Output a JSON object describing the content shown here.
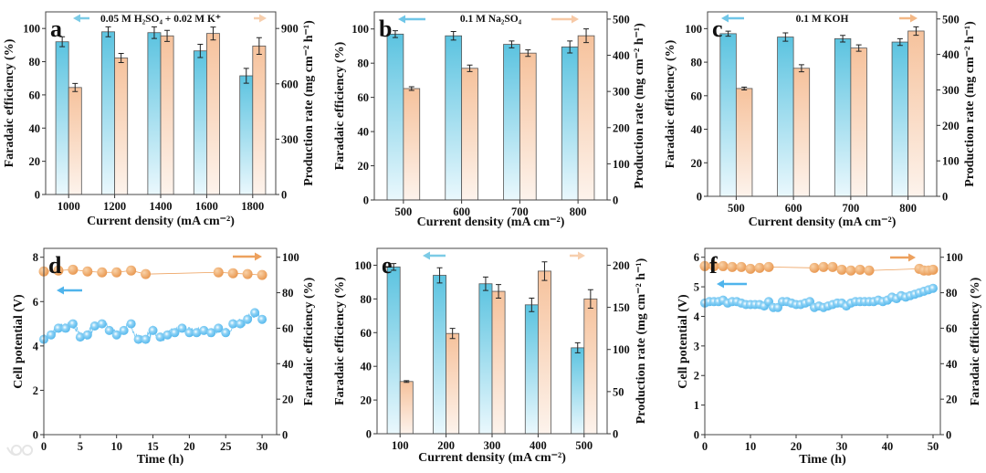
{
  "watermark": "大数跨境",
  "colors": {
    "fe_bar": "#5bc3e0",
    "pr_bar": "#f6c29c",
    "potential": "#4fb4ec",
    "fe_marker": "#eda15e",
    "axis": "#333333"
  },
  "chart_data": [
    {
      "panel": "a",
      "letter": "a",
      "type": "bar",
      "annotation": "0.05 M H₂SO₄ + 0.02 M K⁺",
      "categories": [
        "1000",
        "1200",
        "1400",
        "1600",
        "1800"
      ],
      "xlabel": "Current density (mA cm⁻²)",
      "ylabel": "Faradaic efficiency (%)",
      "y2label": "Production rate (mg cm⁻² h⁻¹)",
      "ylim": [
        0,
        110
      ],
      "yticks": [
        0,
        20,
        40,
        60,
        80,
        100
      ],
      "y2lim": [
        0,
        990
      ],
      "y2ticks": [
        0,
        300,
        600,
        900
      ],
      "series": [
        {
          "name": "Faradaic efficiency",
          "axis": "left",
          "values": [
            92,
            98,
            97.5,
            86.5,
            71.5
          ],
          "errors": [
            3,
            3,
            3.5,
            4,
            4.5
          ]
        },
        {
          "name": "Production rate",
          "axis": "right",
          "values": [
            580,
            740,
            860,
            873,
            805
          ],
          "errors": [
            22,
            25,
            30,
            35,
            45
          ]
        }
      ]
    },
    {
      "panel": "b",
      "letter": "b",
      "type": "bar",
      "annotation": "0.1 M Na₂SO₄",
      "categories": [
        "500",
        "600",
        "700",
        "800"
      ],
      "xlabel": "Current density (mA cm⁻²)",
      "ylabel": "Faradaic efficiency (%)",
      "y2label": "Production rate (mg cm⁻² h⁻¹)",
      "ylim": [
        0,
        110
      ],
      "yticks": [
        0,
        20,
        40,
        60,
        80,
        100
      ],
      "y2lim": [
        0,
        520
      ],
      "y2ticks": [
        0,
        100,
        200,
        300,
        400,
        500
      ],
      "series": [
        {
          "name": "Faradaic efficiency",
          "axis": "left",
          "values": [
            97,
            96,
            91,
            89.5
          ],
          "errors": [
            2,
            2.5,
            2,
            3.5
          ]
        },
        {
          "name": "Production rate",
          "axis": "right",
          "values": [
            308,
            364,
            406,
            454
          ],
          "errors": [
            5,
            9,
            9,
            19
          ]
        }
      ]
    },
    {
      "panel": "c",
      "letter": "c",
      "type": "bar",
      "annotation": "0.1 M KOH",
      "categories": [
        "500",
        "600",
        "700",
        "800"
      ],
      "xlabel": "Current density (mA cm⁻²)",
      "ylabel": "Faradaic efficiency (%)",
      "y2label": "Production rate (mg cm⁻² h⁻¹)",
      "ylim": [
        0,
        110
      ],
      "yticks": [
        0,
        20,
        40,
        60,
        80,
        100
      ],
      "y2lim": [
        0,
        520
      ],
      "y2ticks": [
        0,
        100,
        200,
        300,
        400,
        500
      ],
      "series": [
        {
          "name": "Faradaic efficiency",
          "axis": "left",
          "values": [
            97,
            95,
            94,
            92
          ],
          "errors": [
            1.5,
            2.5,
            2,
            2
          ]
        },
        {
          "name": "Production rate",
          "axis": "right",
          "values": [
            304,
            361,
            418,
            466
          ],
          "errors": [
            4,
            10,
            9,
            12
          ]
        }
      ]
    },
    {
      "panel": "d",
      "letter": "d",
      "type": "line",
      "xlabel": "Time (h)",
      "ylabel": "Cell potential (V)",
      "y2label": "Faradaic efficiency (%)",
      "xlim": [
        0,
        32
      ],
      "xticks": [
        0,
        5,
        10,
        15,
        20,
        25,
        30
      ],
      "ylim": [
        0,
        8.4
      ],
      "yticks": [
        0,
        2,
        4,
        6,
        8
      ],
      "y2lim": [
        0,
        105
      ],
      "y2ticks": [
        0,
        20,
        40,
        60,
        80,
        100
      ],
      "series": [
        {
          "name": "Cell potential",
          "axis": "left",
          "x": [
            0,
            1,
            2,
            3,
            4,
            5,
            6,
            7,
            8,
            9,
            10,
            11,
            12,
            13,
            14,
            15,
            16,
            17,
            18,
            19,
            20,
            21,
            22,
            23,
            24,
            25,
            26,
            27,
            28,
            29,
            30
          ],
          "y": [
            4.3,
            4.5,
            4.8,
            4.8,
            5.0,
            4.4,
            4.5,
            4.9,
            5.0,
            4.7,
            4.5,
            4.7,
            5.0,
            4.3,
            4.3,
            4.7,
            4.4,
            4.5,
            4.6,
            4.8,
            4.6,
            4.6,
            4.7,
            4.6,
            4.8,
            4.6,
            5.0,
            5.0,
            5.2,
            5.5,
            5.2
          ]
        },
        {
          "name": "Faradaic efficiency",
          "axis": "right",
          "x": [
            0,
            2,
            4,
            6,
            8,
            10,
            12,
            14,
            24,
            26,
            28,
            30
          ],
          "y": [
            92,
            92.5,
            93,
            92,
            91.5,
            91.5,
            92.5,
            90.5,
            91.5,
            91,
            90.5,
            90
          ]
        }
      ]
    },
    {
      "panel": "e",
      "letter": "e",
      "type": "bar",
      "annotation": "",
      "categories": [
        "100",
        "200",
        "300",
        "400",
        "500"
      ],
      "xlabel": "Current density (mA cm⁻²)",
      "ylabel": "Faradaic efficiency (%)",
      "y2label": "Production rate (mg cm⁻² h⁻¹)",
      "ylim": [
        0,
        110
      ],
      "yticks": [
        0,
        20,
        40,
        60,
        80,
        100
      ],
      "y2lim": [
        0,
        220
      ],
      "y2ticks": [
        0,
        50,
        100,
        150,
        200
      ],
      "series": [
        {
          "name": "Faradaic efficiency",
          "axis": "left",
          "values": [
            99,
            94,
            89,
            76.5,
            51
          ],
          "errors": [
            2,
            4.5,
            4,
            4,
            3
          ]
        },
        {
          "name": "Production rate",
          "axis": "right",
          "values": [
            62,
            119,
            169,
            193,
            160
          ],
          "errors": [
            1,
            6,
            8,
            11,
            11
          ]
        }
      ]
    },
    {
      "panel": "f",
      "letter": "f",
      "type": "line",
      "xlabel": "Time (h)",
      "ylabel": "Cell potential (V)",
      "y2label": "Faradaic efficiency (%)",
      "xlim": [
        0,
        51.6
      ],
      "xticks": [
        0,
        10,
        20,
        30,
        40,
        50
      ],
      "ylim": [
        0,
        6.3
      ],
      "yticks": [
        0,
        1,
        2,
        3,
        4,
        5,
        6
      ],
      "y2lim": [
        0,
        105
      ],
      "y2ticks": [
        0,
        20,
        40,
        60,
        80,
        100
      ],
      "series": [
        {
          "name": "Cell potential",
          "axis": "left",
          "x": [
            0,
            1,
            2,
            3,
            4,
            5,
            6,
            7,
            8,
            9,
            10,
            11,
            12,
            13,
            14,
            15,
            16,
            17,
            18,
            19,
            20,
            21,
            22,
            23,
            24,
            25,
            26,
            27,
            28,
            29,
            30,
            31,
            32,
            33,
            34,
            35,
            36,
            37,
            38,
            39,
            40,
            41,
            42,
            43,
            44,
            45,
            46,
            47,
            48,
            49,
            50
          ],
          "y": [
            4.45,
            4.5,
            4.5,
            4.5,
            4.55,
            4.45,
            4.5,
            4.5,
            4.45,
            4.4,
            4.4,
            4.4,
            4.4,
            4.35,
            4.5,
            4.3,
            4.3,
            4.5,
            4.5,
            4.45,
            4.4,
            4.4,
            4.45,
            4.5,
            4.3,
            4.35,
            4.3,
            4.35,
            4.4,
            4.45,
            4.45,
            4.35,
            4.45,
            4.5,
            4.5,
            4.5,
            4.5,
            4.5,
            4.55,
            4.5,
            4.55,
            4.65,
            4.6,
            4.7,
            4.65,
            4.7,
            4.75,
            4.8,
            4.85,
            4.9,
            4.95
          ]
        },
        {
          "name": "Faradaic efficiency",
          "axis": "right",
          "x": [
            0,
            2,
            4,
            6,
            8,
            10,
            12,
            14,
            24,
            26,
            28,
            30,
            32,
            34,
            36,
            47,
            48,
            49,
            50
          ],
          "y": [
            95,
            95,
            95,
            94.5,
            94.5,
            93.5,
            94,
            94.5,
            94,
            94.5,
            94.5,
            93,
            92.5,
            93,
            92.5,
            93.5,
            92.5,
            92.5,
            93
          ]
        }
      ]
    }
  ]
}
